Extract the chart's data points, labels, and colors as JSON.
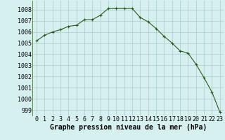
{
  "x": [
    0,
    1,
    2,
    3,
    4,
    5,
    6,
    7,
    8,
    9,
    10,
    11,
    12,
    13,
    14,
    15,
    16,
    17,
    18,
    19,
    20,
    21,
    22,
    23
  ],
  "y": [
    1005.2,
    1005.7,
    1006.0,
    1006.2,
    1006.5,
    1006.6,
    1007.1,
    1007.1,
    1007.5,
    1008.1,
    1008.1,
    1008.1,
    1008.1,
    1007.3,
    1006.9,
    1006.3,
    1005.6,
    1005.0,
    1004.3,
    1004.1,
    1003.1,
    1001.9,
    1000.6,
    998.8
  ],
  "line_color": "#2d5a1b",
  "marker": "+",
  "marker_size": 3,
  "marker_linewidth": 0.8,
  "line_width": 0.8,
  "bg_color": "#d6f0f0",
  "grid_color": "#a8cccc",
  "xlabel": "Graphe pression niveau de la mer (hPa)",
  "xlabel_fontsize": 7,
  "tick_fontsize": 6,
  "ylim": [
    998.5,
    1008.8
  ],
  "xlim": [
    -0.5,
    23.5
  ],
  "yticks": [
    999,
    1000,
    1001,
    1002,
    1003,
    1004,
    1005,
    1006,
    1007,
    1008
  ],
  "xticks": [
    0,
    1,
    2,
    3,
    4,
    5,
    6,
    7,
    8,
    9,
    10,
    11,
    12,
    13,
    14,
    15,
    16,
    17,
    18,
    19,
    20,
    21,
    22,
    23
  ]
}
